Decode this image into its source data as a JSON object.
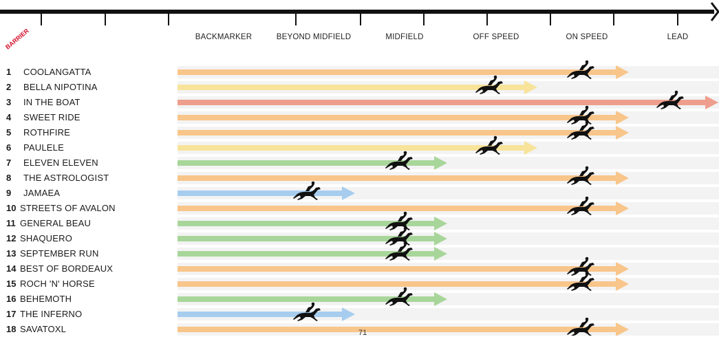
{
  "header": {
    "barrier_label": "BARRIER",
    "columns": [
      "BACKMARKER",
      "BEYOND MIDFIELD",
      "MIDFIELD",
      "OFF SPEED",
      "ON SPEED",
      "LEAD"
    ],
    "page_number": "71"
  },
  "colors": {
    "LEAD": "#ee9e8c",
    "ON SPEED": "#f8c58a",
    "OFF SPEED": "#f8e39a",
    "MIDFIELD": "#a8d69a",
    "BEYOND MIDFIELD": "#a7cdee",
    "BACKMARKER": "#a7cdee",
    "horse": "#111111",
    "barrier_label": "#d0102a"
  },
  "chart_data": {
    "type": "bar",
    "title": "",
    "xlabel": "",
    "ylabel": "BARRIER",
    "categories": [
      "BACKMARKER",
      "BEYOND MIDFIELD",
      "MIDFIELD",
      "OFF SPEED",
      "ON SPEED",
      "LEAD"
    ],
    "runners": [
      {
        "barrier": "1",
        "name": "COOLANGATTA",
        "position": "ON SPEED"
      },
      {
        "barrier": "2",
        "name": "BELLA NIPOTINA",
        "position": "OFF SPEED"
      },
      {
        "barrier": "3",
        "name": "IN THE BOAT",
        "position": "LEAD"
      },
      {
        "barrier": "4",
        "name": "SWEET RIDE",
        "position": "ON SPEED"
      },
      {
        "barrier": "5",
        "name": "ROTHFIRE",
        "position": "ON SPEED"
      },
      {
        "barrier": "6",
        "name": "PAULELE",
        "position": "OFF SPEED"
      },
      {
        "barrier": "7",
        "name": "ELEVEN ELEVEN",
        "position": "MIDFIELD"
      },
      {
        "barrier": "8",
        "name": "THE ASTROLOGIST",
        "position": "ON SPEED"
      },
      {
        "barrier": "9",
        "name": "JAMAEA",
        "position": "BEYOND MIDFIELD"
      },
      {
        "barrier": "10",
        "name": "STREETS OF AVALON",
        "position": "ON SPEED"
      },
      {
        "barrier": "11",
        "name": "GENERAL BEAU",
        "position": "MIDFIELD"
      },
      {
        "barrier": "12",
        "name": "SHAQUERO",
        "position": "MIDFIELD"
      },
      {
        "barrier": "13",
        "name": "SEPTEMBER RUN",
        "position": "MIDFIELD"
      },
      {
        "barrier": "14",
        "name": "BEST OF BORDEAUX",
        "position": "ON SPEED"
      },
      {
        "barrier": "15",
        "name": "ROCH 'N' HORSE",
        "position": "ON SPEED"
      },
      {
        "barrier": "16",
        "name": "BEHEMOTH",
        "position": "MIDFIELD"
      },
      {
        "barrier": "17",
        "name": "THE INFERNO",
        "position": "BEYOND MIDFIELD"
      },
      {
        "barrier": "18",
        "name": "SAVATOXL",
        "position": "ON SPEED"
      }
    ]
  }
}
